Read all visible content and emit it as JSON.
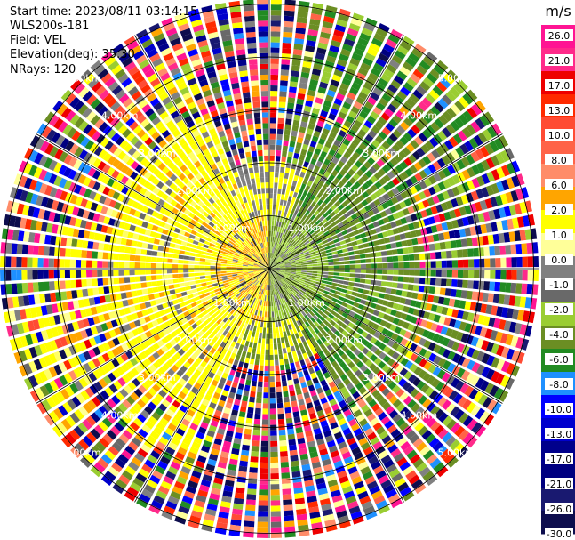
{
  "header": {
    "start_time": "Start time: 2023/08/11 03:14:15",
    "instrument": "WLS200s-181",
    "field": "Field: VEL",
    "elevation": "Elevation(deg): 35.30",
    "nrays": "NRays: 120"
  },
  "chart_data": {
    "type": "heatmap",
    "projection": "polar-ppi",
    "field": "VEL",
    "nrays": 120,
    "elevation_deg": 35.3,
    "range_rings_km": [
      1.0,
      2.0,
      3.0,
      4.0,
      5.0
    ],
    "range_labels": [
      "1.00km",
      "2.00km",
      "3.00km",
      "4.00km",
      "5.00km"
    ],
    "spoke_step_deg": 30,
    "colorbar": {
      "unit": "m/s",
      "tick_labels": [
        "26.0",
        "21.0",
        "17.0",
        "13.0",
        "10.0",
        "8.0",
        "6.0",
        "2.0",
        "1.0",
        "0.0",
        "-1.0",
        "-2.0",
        "-4.0",
        "-6.0",
        "-8.0",
        "-10.0",
        "-13.0",
        "-17.0",
        "-21.0",
        "-26.0",
        "-30.0"
      ],
      "colors": [
        "#ff1493",
        "#ff2a8a",
        "#ee0000",
        "#ff2a00",
        "#ff4b33",
        "#ff6347",
        "#ff8c69",
        "#ffa500",
        "#ffff00",
        "#ffff99",
        "#808080",
        "#696969",
        "#9acd32",
        "#6b8e23",
        "#228b22",
        "#1e90ff",
        "#0000ff",
        "#0000cd",
        "#00008b",
        "#000080",
        "#191970",
        "#0d0d4d"
      ]
    },
    "sector_dominant_velocity": [
      {
        "sector": "west-near",
        "velocity": "1.0 to 6.0"
      },
      {
        "sector": "east-near",
        "velocity": "-2.0 to -6.0"
      },
      {
        "sector": "far-range",
        "velocity": "noise -30.0 to 26.0"
      }
    ]
  }
}
